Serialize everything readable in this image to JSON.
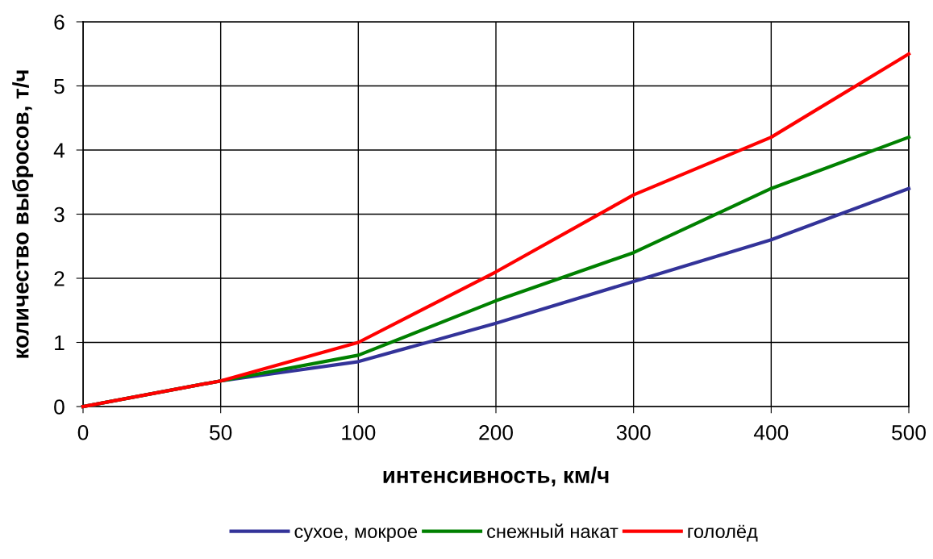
{
  "chart_data": {
    "type": "line",
    "xlabel": "интенсивность, км/ч",
    "ylabel": "количество выбросов, т/ч",
    "categories": [
      "0",
      "50",
      "100",
      "200",
      "300",
      "400",
      "500"
    ],
    "series": [
      {
        "name": "сухое, мокрое",
        "color": "#333399",
        "values": [
          0,
          0.4,
          0.7,
          1.3,
          1.95,
          2.6,
          3.4
        ]
      },
      {
        "name": "снежный накат",
        "color": "#008000",
        "values": [
          0,
          0.4,
          0.8,
          1.65,
          2.4,
          3.4,
          4.2
        ]
      },
      {
        "name": "гололёд",
        "color": "#ff0000",
        "values": [
          0,
          0.4,
          1.0,
          2.1,
          3.3,
          4.2,
          5.5
        ]
      }
    ],
    "ylim": [
      0,
      6
    ],
    "yticks": [
      0,
      1,
      2,
      3,
      4,
      5,
      6
    ],
    "grid": true,
    "legend": "bottom",
    "marker": "none",
    "line_style": "solid"
  }
}
